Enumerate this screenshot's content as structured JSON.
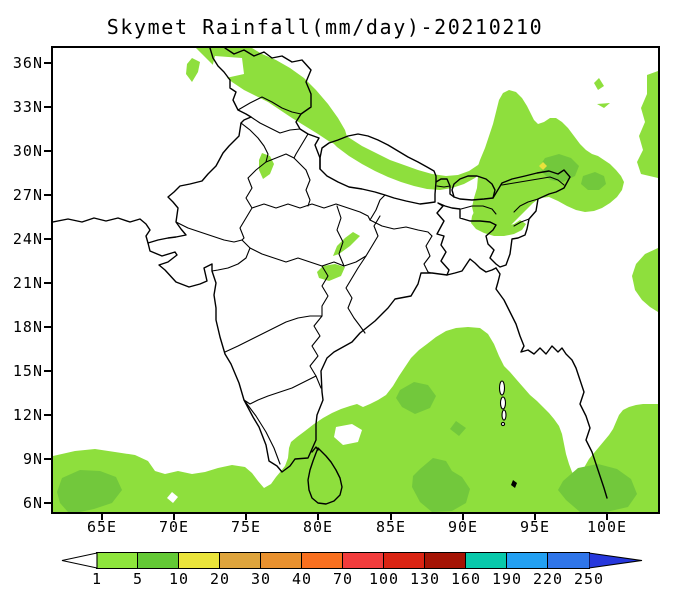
{
  "title": "Skymet Rainfall(mm/day)-20210210",
  "chart_data": {
    "type": "filled-contour-map",
    "title": "Skymet Rainfall(mm/day)-20210210",
    "variable": "Rainfall",
    "units": "mm/day",
    "date": "20210210",
    "x_axis": {
      "ticks": [
        "65E",
        "70E",
        "75E",
        "80E",
        "85E",
        "90E",
        "95E",
        "100E"
      ]
    },
    "y_axis": {
      "ticks": [
        "36N",
        "33N",
        "30N",
        "27N",
        "24N",
        "21N",
        "18N",
        "15N",
        "12N",
        "9N",
        "6N"
      ]
    },
    "colorbar": {
      "levels": [
        "1",
        "5",
        "10",
        "20",
        "30",
        "40",
        "70",
        "100",
        "130",
        "160",
        "190",
        "220",
        "250"
      ],
      "colors": [
        "#8ee53c",
        "#63c935",
        "#eae43b",
        "#dea43c",
        "#e9912e",
        "#f9701f",
        "#f23c3c",
        "#da2413",
        "#a51405",
        "#08c9ab",
        "#23a0f2",
        "#2f75e9"
      ],
      "underflow_color": "#ffffff",
      "overflow_color": "#2637dc"
    },
    "map_colors": {
      "rain_1_5": "#8edf3d",
      "rain_5_10": "#72c83c",
      "rain_10_20": "#e8e23c",
      "boundaries": "#000000",
      "no_rain": "#ffffff"
    },
    "shaded_regions": [
      {
        "area": "Western Himalayas / Jammu & Kashmir and adjoining north Pakistan",
        "value_mm_day": "1-5"
      },
      {
        "area": "Himalayan belt along the Nepal border to Sikkim",
        "value_mm_day": "1-5"
      },
      {
        "area": "Arunachal Pradesh / Northeast India and adjoining areas",
        "value_mm_day": "1-10, isolated 10-20"
      },
      {
        "area": "Small patches over central India (Madhya Pradesh)",
        "value_mm_day": "1-5"
      },
      {
        "area": "South peninsular tip, Sri Lanka, south Bay of Bengal and equatorial Indian Ocean",
        "value_mm_day": "1-10"
      }
    ]
  }
}
